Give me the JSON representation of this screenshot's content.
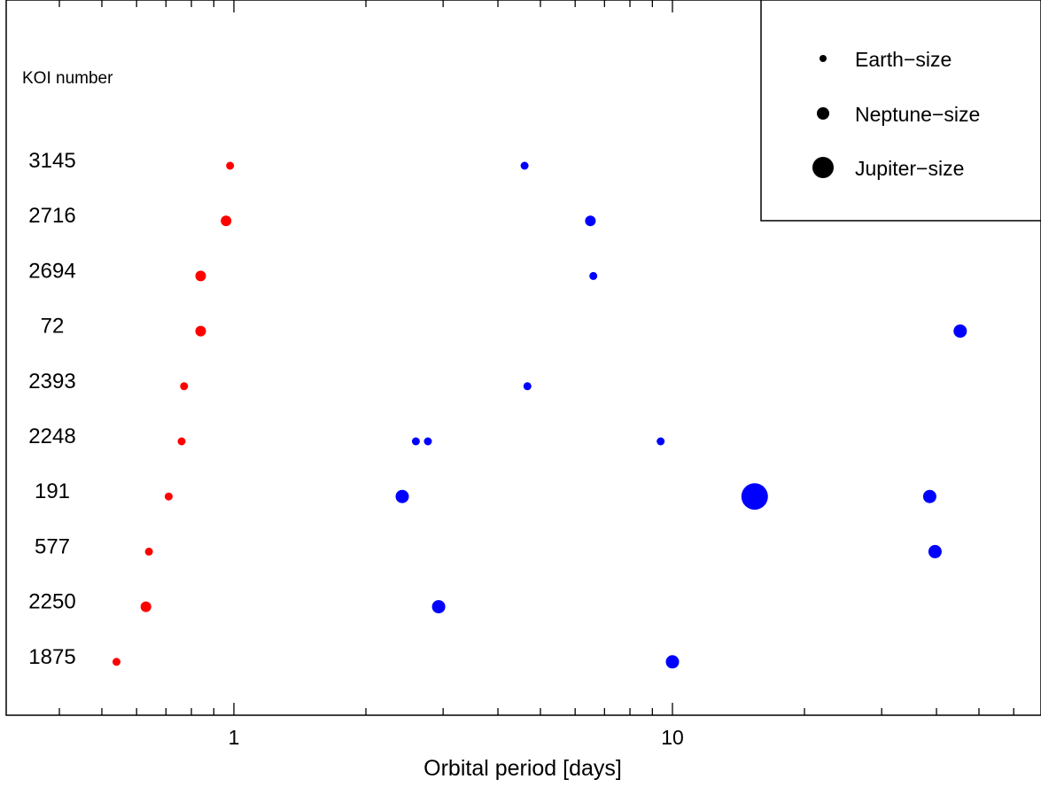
{
  "chart_data": {
    "type": "scatter",
    "xlabel": "Orbital period [days]",
    "ylabel": "",
    "xscale": "log",
    "xlim": [
      0.4,
      60
    ],
    "x_ticks": [
      {
        "value": 1,
        "label": "1"
      },
      {
        "value": 10,
        "label": "10"
      }
    ],
    "y_header": "KOI number",
    "koi_labels": [
      "3145",
      "2716",
      "2694",
      "72",
      "2393",
      "2248",
      "191",
      "577",
      "2250",
      "1875"
    ],
    "legend": {
      "position": "top-right",
      "entries": [
        {
          "label": "Earth−size",
          "size": "earth"
        },
        {
          "label": "Neptune−size",
          "size": "neptune"
        },
        {
          "label": "Jupiter−size",
          "size": "jupiter"
        }
      ]
    },
    "colors": {
      "short_period": "#ff0000",
      "other": "#0000ff"
    },
    "points": [
      {
        "koi": "3145",
        "period": 0.98,
        "size": "small",
        "color": "red"
      },
      {
        "koi": "3145",
        "period": 4.6,
        "size": "small",
        "color": "blue"
      },
      {
        "koi": "2716",
        "period": 0.96,
        "size": "medium",
        "color": "red"
      },
      {
        "koi": "2716",
        "period": 6.5,
        "size": "medium",
        "color": "blue"
      },
      {
        "koi": "2694",
        "period": 0.84,
        "size": "medium",
        "color": "red"
      },
      {
        "koi": "2694",
        "period": 6.6,
        "size": "small",
        "color": "blue"
      },
      {
        "koi": "72",
        "period": 0.84,
        "size": "medium",
        "color": "red"
      },
      {
        "koi": "72",
        "period": 45.3,
        "size": "large",
        "color": "blue"
      },
      {
        "koi": "2393",
        "period": 0.77,
        "size": "small",
        "color": "red"
      },
      {
        "koi": "2393",
        "period": 4.67,
        "size": "small",
        "color": "blue"
      },
      {
        "koi": "2248",
        "period": 0.76,
        "size": "small",
        "color": "red"
      },
      {
        "koi": "2248",
        "period": 2.6,
        "size": "small",
        "color": "blue"
      },
      {
        "koi": "2248",
        "period": 2.77,
        "size": "small",
        "color": "blue"
      },
      {
        "koi": "2248",
        "period": 9.4,
        "size": "small",
        "color": "blue"
      },
      {
        "koi": "191",
        "period": 0.71,
        "size": "small",
        "color": "red"
      },
      {
        "koi": "191",
        "period": 2.42,
        "size": "large",
        "color": "blue"
      },
      {
        "koi": "191",
        "period": 15.4,
        "size": "xlarge",
        "color": "blue"
      },
      {
        "koi": "191",
        "period": 38.6,
        "size": "large",
        "color": "blue"
      },
      {
        "koi": "577",
        "period": 0.64,
        "size": "small",
        "color": "red"
      },
      {
        "koi": "577",
        "period": 39.7,
        "size": "large",
        "color": "blue"
      },
      {
        "koi": "2250",
        "period": 0.63,
        "size": "medium",
        "color": "red"
      },
      {
        "koi": "2250",
        "period": 2.93,
        "size": "large",
        "color": "blue"
      },
      {
        "koi": "1875",
        "period": 0.54,
        "size": "small",
        "color": "red"
      },
      {
        "koi": "1875",
        "period": 10.0,
        "size": "large",
        "color": "blue"
      }
    ]
  }
}
